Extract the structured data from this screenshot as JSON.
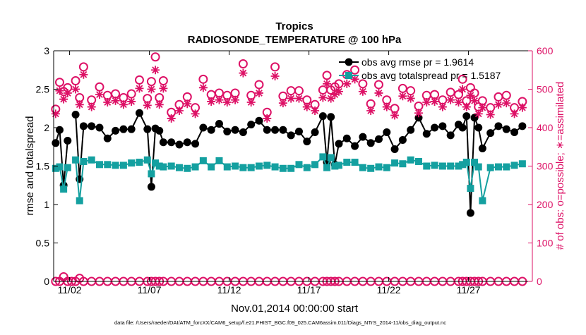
{
  "chart_data": {
    "type": "line",
    "title": "Tropics",
    "subtitle": "RADIOSONDE_TEMPERATURE @ 100 hPa",
    "xlabel": "Nov.01,2014 00:00:00 start",
    "ylabel_left": "rmse and totalspread",
    "ylabel_right": "# of obs: o=possible; ∗=assimilated",
    "footnote": "data file: /Users/raeder/DAI/ATM_forcXX/CAM6_setup/f.e21.FHIST_BGC.f09_025.CAM6assim.011/Diags_NTrS_2014-11/obs_diag_output.nc",
    "xlim": [
      1.0,
      31.0
    ],
    "ylim_left": [
      0,
      3
    ],
    "ylim_right": [
      0,
      600
    ],
    "x_ticks": [
      2,
      7,
      12,
      17,
      22,
      27
    ],
    "x_tick_labels": [
      "11/02",
      "11/07",
      "11/12",
      "11/17",
      "11/22",
      "11/27"
    ],
    "y_ticks_left": [
      0,
      0.5,
      1,
      1.5,
      2,
      2.5,
      3
    ],
    "y_tick_labels_left": [
      "0",
      "0.5",
      "1",
      "1.5",
      "2",
      "2.5",
      "3"
    ],
    "y_ticks_right": [
      0,
      100,
      200,
      300,
      400,
      500,
      600
    ],
    "y_tick_labels_right": [
      "0",
      "100",
      "200",
      "300",
      "400",
      "500",
      "600"
    ],
    "legend": [
      "obs avg rmse pr = 1.9614",
      "obs avg totalspread pr = 1.5187"
    ],
    "legend_position": "top-right",
    "series": [
      {
        "name": "obs avg rmse pr",
        "axis": "left",
        "color": "#000000",
        "marker": "circle",
        "x": [
          1.125,
          1.375,
          1.625,
          1.875,
          2.125,
          2.375,
          2.625,
          2.875,
          3.375,
          3.875,
          4.375,
          4.875,
          5.375,
          5.875,
          6.375,
          6.875,
          7.125,
          7.375,
          7.625,
          7.875,
          8.375,
          8.875,
          9.375,
          9.875,
          10.375,
          10.875,
          11.375,
          11.875,
          12.375,
          12.875,
          13.375,
          13.875,
          14.375,
          14.875,
          15.375,
          15.875,
          16.375,
          16.875,
          17.375,
          17.875,
          18.125,
          18.375,
          18.625,
          18.875,
          19.375,
          19.875,
          20.375,
          20.875,
          21.375,
          21.875,
          22.375,
          22.875,
          23.375,
          23.875,
          24.375,
          24.875,
          25.375,
          25.875,
          26.375,
          26.625,
          26.875,
          27.125,
          27.375,
          27.625,
          27.875,
          28.375,
          28.875,
          29.375,
          29.875,
          30.375
        ],
        "values": [
          1.8,
          1.97,
          1.25,
          1.83,
          null,
          2.17,
          1.33,
          2.02,
          2.02,
          2.0,
          1.86,
          1.96,
          1.98,
          1.98,
          2.19,
          1.98,
          1.23,
          1.99,
          1.96,
          1.81,
          1.81,
          1.78,
          1.81,
          1.79,
          2.0,
          1.97,
          2.05,
          1.95,
          1.97,
          1.94,
          2.04,
          2.09,
          1.97,
          1.97,
          1.97,
          1.9,
          1.95,
          1.82,
          1.94,
          2.15,
          1.55,
          2.14,
          1.52,
          1.79,
          1.86,
          1.76,
          1.88,
          1.8,
          1.85,
          1.94,
          1.72,
          1.84,
          1.97,
          2.13,
          1.92,
          2.0,
          2.02,
          1.9,
          2.04,
          2.0,
          2.15,
          0.89,
          2.13,
          2.0,
          1.73,
          1.93,
          2.02,
          1.98,
          1.94,
          2.02
        ]
      },
      {
        "name": "obs avg totalspread pr",
        "axis": "left",
        "color": "#14a0a0",
        "marker": "square",
        "x": [
          1.125,
          1.375,
          1.625,
          1.875,
          2.125,
          2.375,
          2.625,
          2.875,
          3.375,
          3.875,
          4.375,
          4.875,
          5.375,
          5.875,
          6.375,
          6.875,
          7.125,
          7.375,
          7.625,
          7.875,
          8.375,
          8.875,
          9.375,
          9.875,
          10.375,
          10.875,
          11.375,
          11.875,
          12.375,
          12.875,
          13.375,
          13.875,
          14.375,
          14.875,
          15.375,
          15.875,
          16.375,
          16.875,
          17.375,
          17.875,
          18.125,
          18.375,
          18.625,
          18.875,
          19.375,
          19.875,
          20.375,
          20.875,
          21.375,
          21.875,
          22.375,
          22.875,
          23.375,
          23.875,
          24.375,
          24.875,
          25.375,
          25.875,
          26.375,
          26.625,
          26.875,
          27.125,
          27.375,
          27.625,
          27.875,
          28.375,
          28.875,
          29.375,
          29.875,
          30.375
        ],
        "values": [
          1.47,
          1.49,
          1.2,
          1.48,
          null,
          1.58,
          1.05,
          1.56,
          1.58,
          1.52,
          1.52,
          1.51,
          1.51,
          1.54,
          1.55,
          1.58,
          1.4,
          1.54,
          1.5,
          1.49,
          1.5,
          1.48,
          1.47,
          1.49,
          1.57,
          1.49,
          1.57,
          1.49,
          1.5,
          1.48,
          1.48,
          1.5,
          1.51,
          1.49,
          1.47,
          1.47,
          1.52,
          1.48,
          1.52,
          1.62,
          1.48,
          1.61,
          1.5,
          1.51,
          1.55,
          1.55,
          1.48,
          1.47,
          1.49,
          1.48,
          1.54,
          1.53,
          1.58,
          1.56,
          1.5,
          1.51,
          1.5,
          1.5,
          1.5,
          1.52,
          1.55,
          1.21,
          1.55,
          1.49,
          1.05,
          1.48,
          1.49,
          1.49,
          1.51,
          1.53
        ]
      },
      {
        "name": "# of obs possible",
        "axis": "right",
        "color": "#dd1166",
        "marker": "open-circle",
        "x": [
          1.125,
          1.375,
          1.625,
          1.875,
          2.125,
          2.375,
          2.625,
          2.875,
          3.375,
          3.875,
          4.375,
          4.875,
          5.375,
          5.875,
          6.375,
          6.875,
          7.125,
          7.375,
          7.625,
          7.875,
          8.375,
          8.875,
          9.375,
          9.875,
          10.375,
          10.875,
          11.375,
          11.875,
          12.375,
          12.875,
          13.375,
          13.875,
          14.375,
          14.875,
          15.375,
          15.875,
          16.375,
          16.875,
          17.375,
          17.875,
          18.125,
          18.375,
          18.625,
          18.875,
          19.375,
          19.875,
          20.375,
          20.875,
          21.375,
          21.875,
          22.375,
          22.875,
          23.375,
          23.875,
          24.375,
          24.875,
          25.375,
          25.875,
          26.375,
          26.625,
          26.875,
          27.125,
          27.375,
          27.625,
          27.875,
          28.375,
          28.875,
          29.375,
          29.875,
          30.375
        ],
        "values": [
          448,
          518,
          494,
          504,
          null,
          522,
          478,
          558,
          472,
          506,
          484,
          488,
          478,
          488,
          524,
          476,
          520,
          584,
          478,
          522,
          440,
          460,
          480,
          452,
          526,
          486,
          490,
          484,
          490,
          566,
          484,
          512,
          440,
          558,
          482,
          496,
          496,
          472,
          460,
          498,
          536,
          498,
          506,
          514,
          538,
          550,
          514,
          462,
          512,
          472,
          450,
          502,
          496,
          456,
          484,
          486,
          472,
          492,
          486,
          526,
          470,
          504,
          490,
          454,
          470,
          452,
          480,
          484,
          452,
          468
        ]
      },
      {
        "name": "# of obs assimilated",
        "axis": "right",
        "color": "#dd1166",
        "marker": "asterisk",
        "x": [
          1.125,
          1.375,
          1.625,
          1.875,
          2.125,
          2.375,
          2.625,
          2.875,
          3.375,
          3.875,
          4.375,
          4.875,
          5.375,
          5.875,
          6.375,
          6.875,
          7.125,
          7.375,
          7.625,
          7.875,
          8.375,
          8.875,
          9.375,
          9.875,
          10.375,
          10.875,
          11.375,
          11.875,
          12.375,
          12.875,
          13.375,
          13.875,
          14.375,
          14.875,
          15.375,
          15.875,
          16.375,
          16.875,
          17.375,
          17.875,
          18.125,
          18.375,
          18.625,
          18.875,
          19.375,
          19.875,
          20.375,
          20.875,
          21.375,
          21.875,
          22.375,
          22.875,
          23.375,
          23.875,
          24.375,
          24.875,
          25.375,
          25.875,
          26.375,
          26.625,
          26.875,
          27.125,
          27.375,
          27.625,
          27.875,
          28.375,
          28.875,
          29.375,
          29.875,
          30.375
        ],
        "values": [
          436,
          496,
          474,
          490,
          null,
          500,
          460,
          538,
          454,
          486,
          466,
          470,
          460,
          468,
          502,
          458,
          500,
          550,
          460,
          502,
          424,
          444,
          462,
          436,
          504,
          468,
          472,
          466,
          472,
          542,
          466,
          490,
          424,
          534,
          464,
          476,
          476,
          454,
          444,
          478,
          514,
          476,
          486,
          494,
          514,
          526,
          494,
          444,
          490,
          454,
          432,
          482,
          476,
          438,
          466,
          468,
          454,
          472,
          466,
          500,
          454,
          484,
          470,
          436,
          452,
          434,
          460,
          464,
          436,
          452
        ]
      },
      {
        "name": "# of obs possible (bottom)",
        "axis": "right",
        "color": "#dd1166",
        "marker": "open-circle",
        "x": [
          1.125,
          1.375,
          1.625,
          1.875,
          2.125,
          2.375,
          2.625,
          2.875,
          3.375,
          3.875,
          4.375,
          4.875,
          5.375,
          5.875,
          6.375,
          6.875,
          7.125,
          7.375,
          7.625,
          7.875,
          8.375,
          8.875,
          9.375,
          9.875,
          10.375,
          10.875,
          11.375,
          11.875,
          12.375,
          12.875,
          13.375,
          13.875,
          14.375,
          14.875,
          15.375,
          15.875,
          16.375,
          16.875,
          17.375,
          17.875,
          18.125,
          18.375,
          18.625,
          18.875,
          19.375,
          19.875,
          20.375,
          20.875,
          21.375,
          21.875,
          22.375,
          22.875,
          23.375,
          23.875,
          24.375,
          24.875,
          25.375,
          25.875,
          26.375,
          26.625,
          26.875,
          27.125,
          27.375,
          27.625,
          27.875,
          28.375,
          28.875,
          29.375,
          29.875,
          30.375
        ],
        "values": [
          0,
          0,
          12,
          0,
          0,
          0,
          8,
          0,
          0,
          0,
          0,
          0,
          0,
          0,
          0,
          0,
          0,
          0,
          0,
          0,
          0,
          0,
          0,
          0,
          0,
          0,
          0,
          0,
          0,
          0,
          0,
          0,
          0,
          0,
          0,
          0,
          0,
          0,
          0,
          0,
          0,
          0,
          0,
          0,
          0,
          0,
          0,
          0,
          0,
          0,
          0,
          0,
          0,
          0,
          0,
          0,
          0,
          0,
          0,
          0,
          0,
          0,
          0,
          0,
          0,
          0,
          0,
          0,
          0,
          0
        ]
      }
    ]
  }
}
